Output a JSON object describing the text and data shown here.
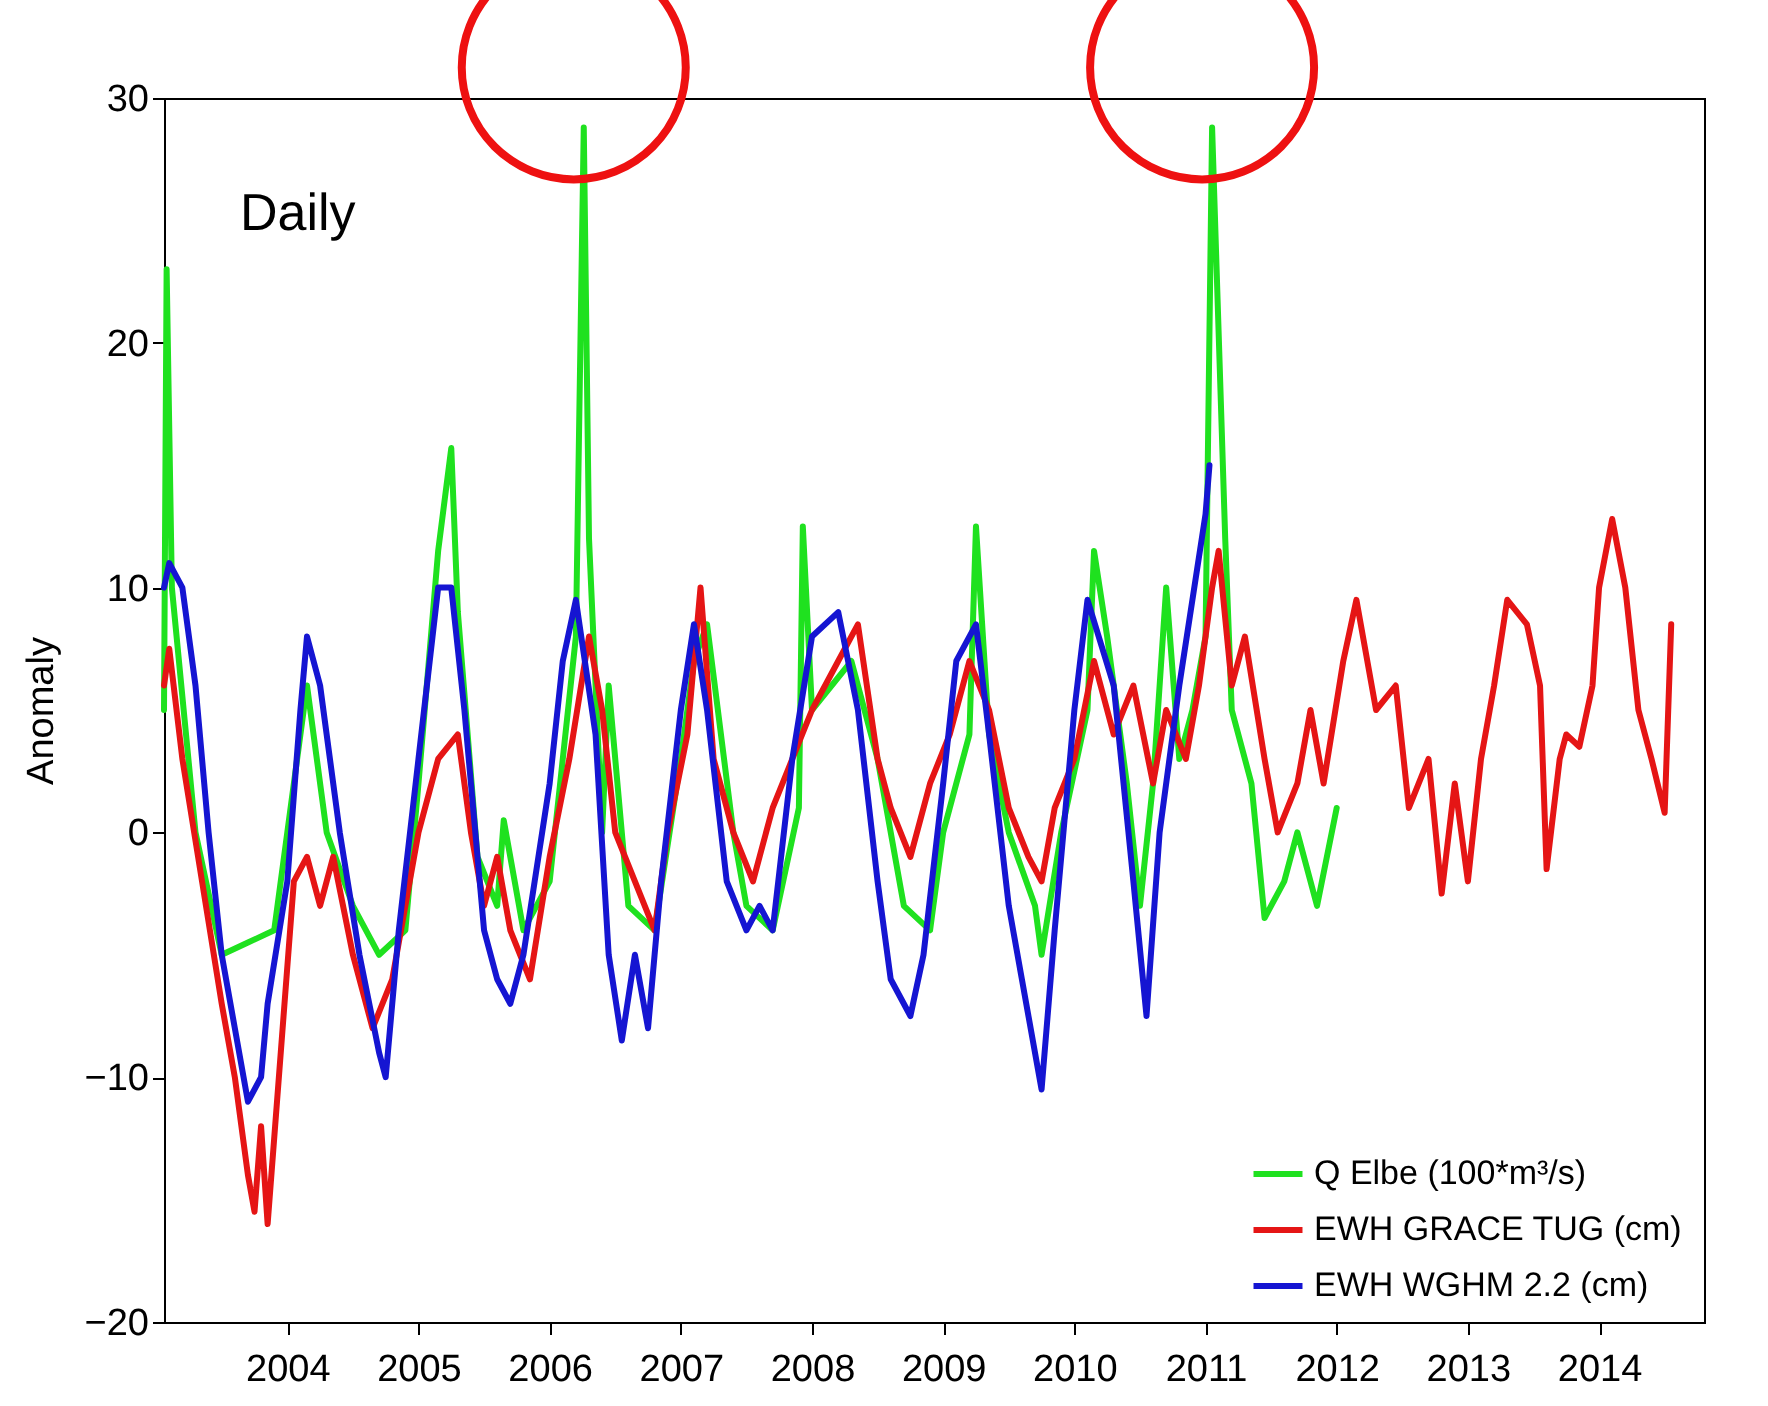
{
  "chart_data": {
    "type": "line",
    "ylabel": "Anomaly",
    "annotations": [
      "Daily"
    ],
    "xlim": [
      2003.06,
      2014.8
    ],
    "xticks": [
      2004,
      2005,
      2006,
      2007,
      2008,
      2009,
      2010,
      2011,
      2012,
      2013,
      2014
    ],
    "ylim": [
      -20,
      30
    ],
    "yticks": [
      -20,
      -10,
      0,
      10,
      20,
      30
    ],
    "grid": false,
    "legend": "bottom right",
    "line_style": "solid",
    "series": [
      {
        "name": "Q Elbe (100*m³/s)",
        "color": "#1fe11f",
        "x": [
          2003.06,
          2003.08,
          2003.12,
          2003.3,
          2003.5,
          2003.7,
          2003.9,
          2004.0,
          2004.15,
          2004.3,
          2004.5,
          2004.7,
          2004.9,
          2005.0,
          2005.15,
          2005.25,
          2005.3,
          2005.45,
          2005.6,
          2005.65,
          2005.8,
          2006.0,
          2006.2,
          2006.26,
          2006.3,
          2006.4,
          2006.45,
          2006.6,
          2006.8,
          2007.0,
          2007.1,
          2007.2,
          2007.4,
          2007.5,
          2007.7,
          2007.9,
          2007.93,
          2008.0,
          2008.3,
          2008.5,
          2008.7,
          2008.9,
          2009.0,
          2009.2,
          2009.25,
          2009.35,
          2009.5,
          2009.7,
          2009.75,
          2009.9,
          2010.1,
          2010.15,
          2010.25,
          2010.4,
          2010.5,
          2010.6,
          2010.7,
          2010.8,
          2010.9,
          2011.0,
          2011.05,
          2011.15,
          2011.2,
          2011.35,
          2011.45,
          2011.6,
          2011.7,
          2011.85,
          2012.0
        ],
        "values": [
          5,
          23,
          10,
          0,
          -5,
          -4.5,
          -4,
          0,
          6,
          0,
          -3,
          -5,
          -4,
          2,
          11.5,
          15.7,
          9,
          -1,
          -3,
          0.5,
          -4,
          -2,
          8,
          28.8,
          12,
          0,
          6,
          -3,
          -4,
          3,
          7,
          8.5,
          0,
          -3,
          -4,
          1,
          12.5,
          5,
          7,
          3,
          -3,
          -4,
          0,
          4,
          12.5,
          4,
          0,
          -3,
          -5,
          0,
          5,
          11.5,
          8,
          2,
          -3,
          2,
          10,
          3,
          5,
          8,
          28.8,
          12,
          5,
          2,
          -3.5,
          -2,
          0,
          -3,
          1
        ]
      },
      {
        "name": "EWH GRACE TUG (cm)",
        "color": "#e51515",
        "x": [
          2003.06,
          2003.1,
          2003.2,
          2003.35,
          2003.5,
          2003.6,
          2003.7,
          2003.75,
          2003.8,
          2003.85,
          2003.95,
          2004.05,
          2004.15,
          2004.25,
          2004.35,
          2004.5,
          2004.65,
          2004.8,
          2004.9,
          2005.0,
          2005.15,
          2005.3,
          2005.4,
          2005.5,
          2005.6,
          2005.7,
          2005.85,
          2006.0,
          2006.15,
          2006.3,
          2006.4,
          2006.5,
          2006.65,
          2006.8,
          2006.9,
          2007.05,
          2007.15,
          2007.25,
          2007.4,
          2007.55,
          2007.7,
          2007.85,
          2008.0,
          2008.2,
          2008.35,
          2008.5,
          2008.6,
          2008.75,
          2008.9,
          2009.05,
          2009.2,
          2009.35,
          2009.5,
          2009.65,
          2009.75,
          2009.85,
          2010.0,
          2010.15,
          2010.3,
          2010.45,
          2010.6,
          2010.7,
          2010.85,
          2010.95,
          2011.05,
          2011.1,
          2011.2,
          2011.3,
          2011.45,
          2011.55,
          2011.7,
          2011.8,
          2011.9,
          2012.05,
          2012.15,
          2012.3,
          2012.45,
          2012.55,
          2012.7,
          2012.8,
          2012.9,
          2013.0,
          2013.1,
          2013.2,
          2013.3,
          2013.45,
          2013.55,
          2013.6,
          2013.7,
          2013.75,
          2013.85,
          2013.95,
          2014.0,
          2014.1,
          2014.2,
          2014.3,
          2014.4,
          2014.5,
          2014.55
        ],
        "values": [
          6,
          7.5,
          3,
          -2,
          -7,
          -10,
          -14,
          -15.5,
          -12,
          -16,
          -9,
          -2,
          -1,
          -3,
          -1,
          -5,
          -8,
          -6,
          -3,
          0,
          3,
          4,
          0,
          -3,
          -1,
          -4,
          -6,
          -1,
          3,
          8,
          5,
          0,
          -2,
          -4,
          0,
          4,
          10,
          3,
          0,
          -2,
          1,
          3,
          5,
          7,
          8.5,
          3,
          1,
          -1,
          2,
          4,
          7,
          5,
          1,
          -1,
          -2,
          1,
          3,
          7,
          4,
          6,
          2,
          5,
          3,
          6,
          10,
          11.5,
          6,
          8,
          3,
          0,
          2,
          5,
          2,
          7,
          9.5,
          5,
          6,
          1,
          3,
          -2.5,
          2,
          -2,
          3,
          6,
          9.5,
          8.5,
          6,
          -1.5,
          3,
          4,
          3.5,
          6,
          10,
          12.8,
          10,
          5,
          3,
          0.8,
          8.5
        ]
      },
      {
        "name": "EWH WGHM 2.2 (cm)",
        "color": "#1515d2",
        "x": [
          2003.06,
          2003.1,
          2003.2,
          2003.3,
          2003.4,
          2003.5,
          2003.6,
          2003.7,
          2003.8,
          2003.85,
          2004.0,
          2004.1,
          2004.15,
          2004.25,
          2004.4,
          2004.55,
          2004.7,
          2004.75,
          2004.85,
          2005.0,
          2005.15,
          2005.25,
          2005.35,
          2005.5,
          2005.6,
          2005.7,
          2005.8,
          2006.0,
          2006.1,
          2006.2,
          2006.35,
          2006.45,
          2006.55,
          2006.65,
          2006.75,
          2006.85,
          2007.0,
          2007.1,
          2007.2,
          2007.35,
          2007.5,
          2007.6,
          2007.7,
          2007.85,
          2008.0,
          2008.2,
          2008.35,
          2008.5,
          2008.6,
          2008.75,
          2008.85,
          2009.0,
          2009.1,
          2009.25,
          2009.35,
          2009.5,
          2009.6,
          2009.75,
          2009.85,
          2010.0,
          2010.1,
          2010.3,
          2010.45,
          2010.55,
          2010.65,
          2010.8,
          2011.0,
          2011.03
        ],
        "values": [
          10,
          11,
          10,
          6,
          0,
          -5,
          -8,
          -11,
          -10,
          -7,
          -2,
          5,
          8,
          6,
          0,
          -5,
          -9,
          -10,
          -4,
          3,
          10,
          10,
          5,
          -4,
          -6,
          -7,
          -5,
          2,
          7,
          9.5,
          4,
          -5,
          -8.5,
          -5,
          -8,
          -2,
          5,
          8.5,
          5,
          -2,
          -4,
          -3,
          -4,
          3,
          8,
          9,
          5,
          -2,
          -6,
          -7.5,
          -5,
          2,
          7,
          8.5,
          4,
          -3,
          -6,
          -10.5,
          -4,
          5,
          9.5,
          6,
          -2,
          -7.5,
          0,
          6,
          13,
          15
        ]
      }
    ]
  }
}
